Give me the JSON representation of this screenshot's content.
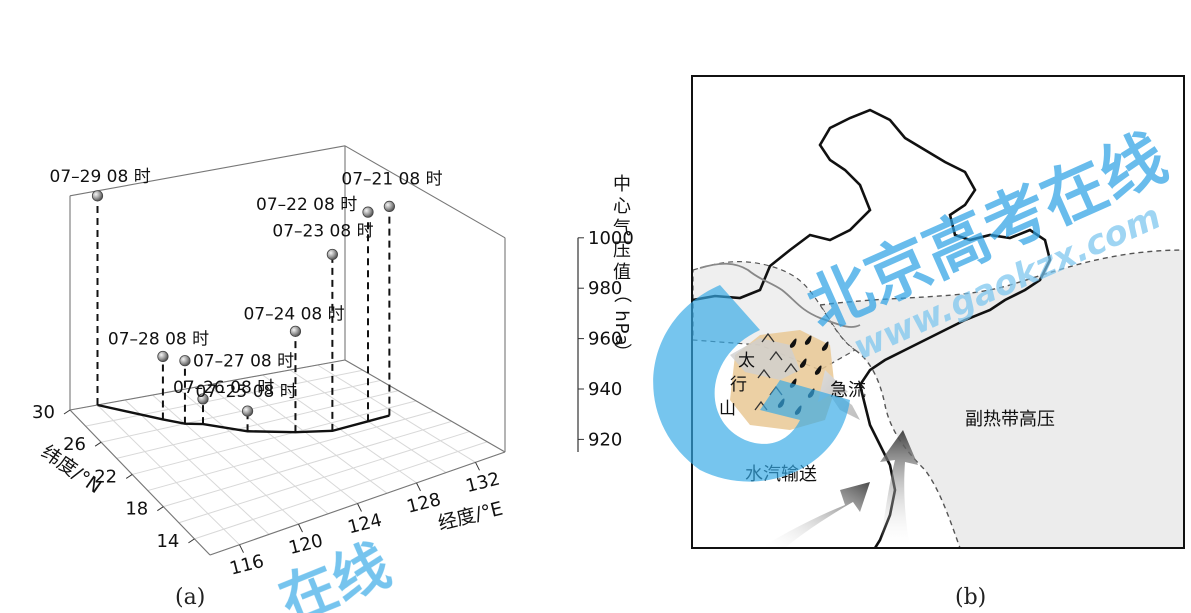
{
  "panels": {
    "a_caption": "(a)",
    "b_caption": "(b)"
  },
  "chart_data": {
    "type": "scatter",
    "subtype": "3d-track",
    "xlabel": "经度/°E",
    "ylabel": "纬度/°N",
    "zlabel": "中心气压值（hPa）",
    "x_ticks": [
      "116",
      "120",
      "124",
      "128",
      "132"
    ],
    "y_ticks": [
      "14",
      "18",
      "22",
      "26",
      "30"
    ],
    "z_ticks": [
      "920",
      "940",
      "960",
      "980",
      "1000"
    ],
    "xlim": [
      114,
      134
    ],
    "ylim": [
      12,
      30
    ],
    "zlim": [
      915,
      1000
    ],
    "grid": true,
    "points": [
      {
        "label": "07–21 08 时",
        "lon": 131.5,
        "lat": 21.0,
        "pressure": 998
      },
      {
        "label": "07–22 08 时",
        "lon": 130.0,
        "lat": 21.0,
        "pressure": 998
      },
      {
        "label": "07–23 08 时",
        "lon": 127.5,
        "lat": 21.0,
        "pressure": 985
      },
      {
        "label": "07–24 08 时",
        "lon": 125.5,
        "lat": 22.0,
        "pressure": 955
      },
      {
        "label": "07–25 08 时",
        "lon": 123.0,
        "lat": 23.5,
        "pressure": 923
      },
      {
        "label": "07–26 08 时",
        "lon": 121.0,
        "lat": 25.5,
        "pressure": 925
      },
      {
        "label": "07–27 08 时",
        "lon": 120.0,
        "lat": 26.0,
        "pressure": 940
      },
      {
        "label": "07–28 08 时",
        "lon": 119.0,
        "lat": 27.0,
        "pressure": 940
      },
      {
        "label": "07–29 08 时",
        "lon": 116.0,
        "lat": 30.0,
        "pressure": 998
      }
    ]
  },
  "map_b": {
    "labels": {
      "taihang": [
        "太",
        "行",
        "山"
      ],
      "jet": "急流",
      "subtropical_high": "副热带高压",
      "moisture": "水汽输送"
    },
    "colors": {
      "high_fill": "#ececec",
      "mountain_fill": "#e9c894",
      "arrow_dark": "#555555"
    }
  },
  "watermarks": [
    "北京高考在线",
    "www.gaokzx.com",
    "在线"
  ]
}
